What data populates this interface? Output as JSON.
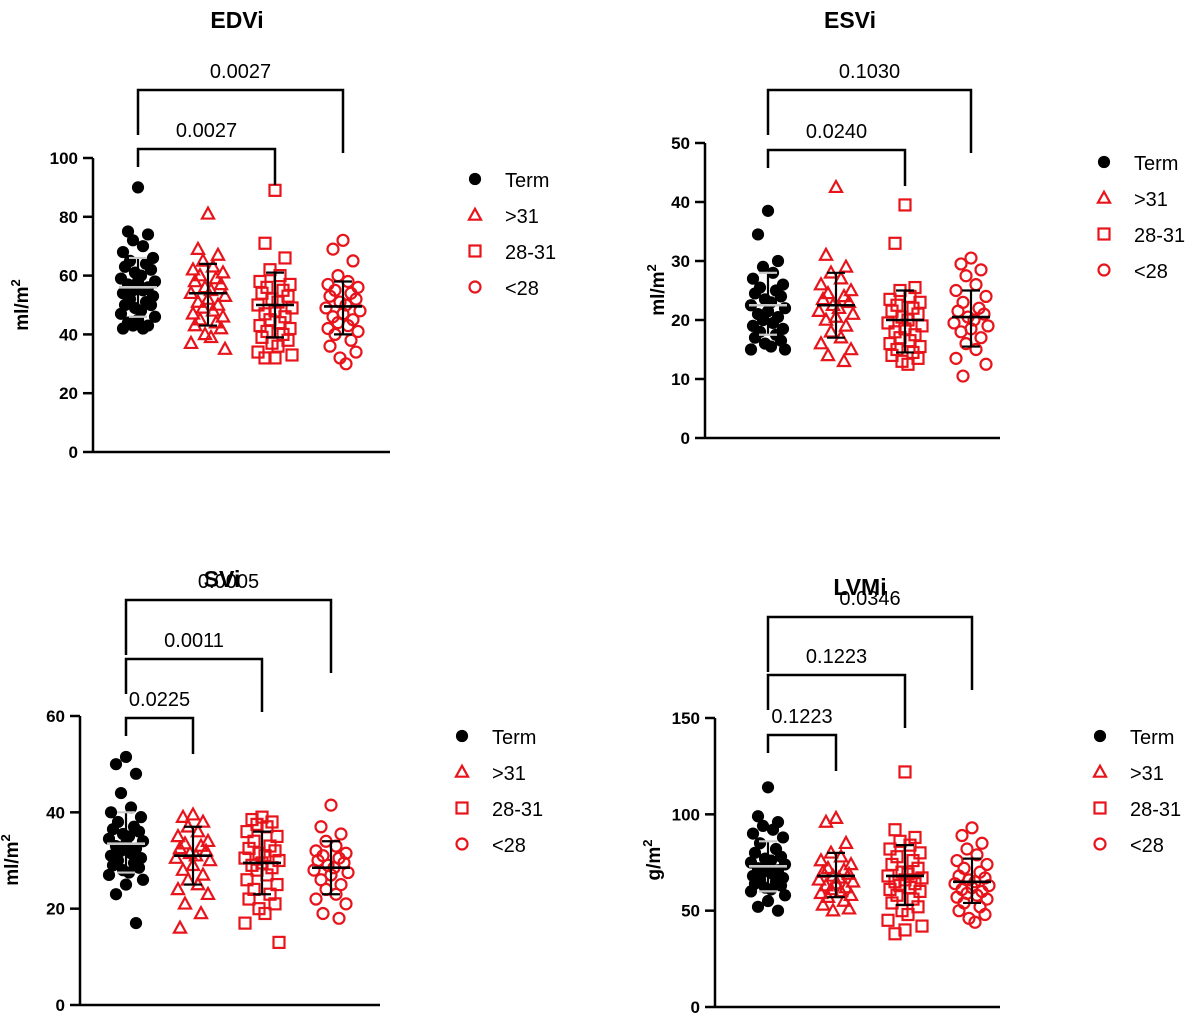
{
  "legend_entries": [
    {
      "label": "Term",
      "marker": "filled-circle",
      "color": "#000000"
    },
    {
      "label": ">31",
      "marker": "open-triangle",
      "color": "#e8141b"
    },
    {
      "label": "28-31",
      "marker": "open-square",
      "color": "#e8141b"
    },
    {
      "label": "<28",
      "marker": "open-circle",
      "color": "#e8141b"
    }
  ],
  "colors": {
    "term": "#000000",
    "preterm": "#e8141b",
    "mean_line_term": "#c8c8c8"
  },
  "chart_data": [
    {
      "type": "scatter",
      "title": "EDVi",
      "ylabel_main": "ml/m",
      "ylabel_sup": "2",
      "ylim": [
        0,
        100
      ],
      "yticks": [
        "0",
        "20",
        "40",
        "60",
        "80",
        "100"
      ],
      "ytick_values": [
        0,
        20,
        40,
        60,
        80,
        100
      ],
      "groups": [
        "Term",
        ">31",
        "28-31",
        "<28"
      ],
      "summary": [
        {
          "mean": 56,
          "sd_low": 46,
          "sd_high": 66
        },
        {
          "mean": 54,
          "sd_low": 43,
          "sd_high": 64
        },
        {
          "mean": 50,
          "sd_low": 39,
          "sd_high": 61
        },
        {
          "mean": 49.5,
          "sd_low": 40,
          "sd_high": 58
        }
      ],
      "points": [
        [
          90,
          75,
          74,
          72,
          70,
          68,
          66,
          65,
          64,
          63,
          62,
          61,
          60,
          59,
          58,
          58,
          57,
          56,
          55,
          55,
          54,
          53,
          52,
          51,
          50,
          50,
          49,
          48,
          47,
          46,
          45,
          44,
          43,
          43,
          42,
          42
        ],
        [
          81,
          69,
          67,
          65,
          63,
          62,
          61,
          60,
          59,
          58,
          57,
          56,
          55,
          54,
          53,
          52,
          51,
          50,
          49,
          48,
          47,
          46,
          45,
          44,
          43,
          42,
          40,
          39,
          37,
          35
        ],
        [
          89,
          71,
          66,
          62,
          60,
          58,
          57,
          56,
          55,
          54,
          53,
          52,
          51,
          50,
          49,
          48,
          47,
          46,
          45,
          44,
          43,
          42,
          41,
          40,
          39,
          38,
          37,
          36,
          34,
          33,
          32,
          32
        ],
        [
          72,
          69,
          65,
          60,
          58,
          57,
          56,
          55,
          54,
          53,
          52,
          51,
          50,
          49,
          48,
          47,
          46,
          45,
          44,
          43,
          42,
          41,
          40,
          38,
          36,
          34,
          32,
          30
        ]
      ],
      "comparisons": [
        {
          "from": 0,
          "to": 2,
          "p": "0.0027"
        },
        {
          "from": 0,
          "to": 3,
          "p": "0.0027"
        }
      ]
    },
    {
      "type": "scatter",
      "title": "ESVi",
      "ylabel_main": "ml/m",
      "ylabel_sup": "2",
      "ylim": [
        0,
        50
      ],
      "yticks": [
        "0",
        "10",
        "20",
        "30",
        "40",
        "50"
      ],
      "ytick_values": [
        0,
        10,
        20,
        30,
        40,
        50
      ],
      "groups": [
        "Term",
        ">31",
        "28-31",
        "<28"
      ],
      "summary": [
        {
          "mean": 22.5,
          "sd_low": 17.5,
          "sd_high": 28
        },
        {
          "mean": 22.5,
          "sd_low": 17,
          "sd_high": 28
        },
        {
          "mean": 20,
          "sd_low": 14.5,
          "sd_high": 25
        },
        {
          "mean": 20.5,
          "sd_low": 15.5,
          "sd_high": 25
        }
      ],
      "points": [
        [
          38.5,
          34.5,
          30,
          29,
          28,
          27,
          26,
          25.5,
          25,
          24.5,
          24,
          23.5,
          23,
          22.5,
          22,
          21.5,
          21,
          20.5,
          20,
          19.5,
          19,
          18.5,
          18,
          17.5,
          17,
          16.5,
          16,
          15.5,
          15,
          15
        ],
        [
          42.5,
          31,
          29,
          28,
          27,
          26,
          25,
          24.5,
          24,
          23.5,
          23,
          22.5,
          22,
          21.5,
          21,
          20.5,
          20,
          19,
          18,
          17,
          16,
          15,
          14,
          13
        ],
        [
          39.5,
          33,
          25.5,
          25,
          24,
          23.5,
          23,
          22.5,
          22,
          21.5,
          21,
          20.5,
          20,
          19.5,
          19,
          18.5,
          18,
          17.5,
          17,
          16.5,
          16,
          15.5,
          15,
          14.5,
          14,
          13.5,
          13,
          12.5
        ],
        [
          30.5,
          29.5,
          28.5,
          27.5,
          26,
          25,
          24,
          23,
          22,
          21.5,
          21,
          20.5,
          20,
          19.5,
          19,
          18.5,
          18,
          17,
          16,
          15,
          13.5,
          12.5,
          10.5
        ]
      ],
      "comparisons": [
        {
          "from": 0,
          "to": 2,
          "p": "0.0240"
        },
        {
          "from": 0,
          "to": 3,
          "p": "0.1030"
        }
      ]
    },
    {
      "type": "scatter",
      "title": "SVi",
      "ylabel_main": "ml/m",
      "ylabel_sup": "2",
      "ylim": [
        0,
        60
      ],
      "yticks": [
        "0",
        "20",
        "40",
        "60"
      ],
      "ytick_values": [
        0,
        20,
        40,
        60
      ],
      "groups": [
        "Term",
        ">31",
        "28-31",
        "<28"
      ],
      "summary": [
        {
          "mean": 33.5,
          "sd_low": 27.5,
          "sd_high": 40
        },
        {
          "mean": 31,
          "sd_low": 25,
          "sd_high": 37
        },
        {
          "mean": 29.5,
          "sd_low": 23,
          "sd_high": 36
        },
        {
          "mean": 28.5,
          "sd_low": 23,
          "sd_high": 34
        }
      ],
      "points": [
        [
          51.5,
          50,
          48,
          44,
          41,
          40,
          39,
          38,
          37,
          36.5,
          36,
          35.5,
          35,
          34.5,
          34,
          33.5,
          33,
          32.5,
          32,
          31.5,
          31,
          30.5,
          30,
          29.5,
          29,
          28.5,
          28,
          27.5,
          27,
          26,
          25,
          23,
          17
        ],
        [
          39.5,
          39,
          38,
          37,
          36,
          35,
          34,
          33.5,
          33,
          32.5,
          32,
          31.5,
          31,
          30.5,
          30,
          29,
          28,
          27,
          26,
          25,
          24,
          23,
          21,
          19,
          16
        ],
        [
          39,
          38.5,
          38,
          37.5,
          37,
          36,
          35,
          34,
          33,
          32.5,
          32,
          31.5,
          31,
          30.5,
          30,
          29.5,
          29,
          28.5,
          28,
          27,
          26,
          25,
          24,
          23,
          22,
          21,
          20,
          19,
          17,
          13
        ],
        [
          41.5,
          37,
          35.5,
          34,
          33,
          32,
          31.5,
          31,
          30.5,
          30,
          29.5,
          29,
          28.5,
          28,
          27.5,
          27,
          26,
          25,
          24,
          23,
          22,
          21,
          19,
          18
        ]
      ],
      "comparisons": [
        {
          "from": 0,
          "to": 1,
          "p": "0.0225"
        },
        {
          "from": 0,
          "to": 2,
          "p": "0.0011"
        },
        {
          "from": 0,
          "to": 3,
          "p": "0.0005"
        }
      ]
    },
    {
      "type": "scatter",
      "title": "LVMi",
      "ylabel_main": "g/m",
      "ylabel_sup": "2",
      "ylim": [
        0,
        150
      ],
      "yticks": [
        "0",
        "50",
        "100",
        "150"
      ],
      "ytick_values": [
        0,
        50,
        100,
        150
      ],
      "groups": [
        "Term",
        ">31",
        "28-31",
        "<28"
      ],
      "summary": [
        {
          "mean": 73,
          "sd_low": 60,
          "sd_high": 86
        },
        {
          "mean": 68,
          "sd_low": 57,
          "sd_high": 80
        },
        {
          "mean": 68,
          "sd_low": 53,
          "sd_high": 84
        },
        {
          "mean": 65,
          "sd_low": 54,
          "sd_high": 77
        }
      ],
      "points": [
        [
          114,
          99,
          96,
          94,
          92,
          90,
          88,
          85,
          82,
          80,
          78,
          77,
          76,
          75,
          74,
          73,
          72,
          71,
          70,
          69,
          68,
          67,
          66,
          65,
          64,
          63,
          62,
          61,
          60,
          58,
          55,
          52,
          50
        ],
        [
          98,
          96,
          85,
          80,
          78,
          76,
          74,
          72,
          71,
          70,
          69,
          68,
          67,
          66,
          65,
          64,
          63,
          62,
          61,
          60,
          59,
          58,
          57,
          55,
          53,
          51,
          50
        ],
        [
          122,
          92,
          88,
          86,
          84,
          82,
          80,
          78,
          76,
          74,
          72,
          70,
          69,
          68,
          67,
          66,
          65,
          64,
          63,
          62,
          61,
          60,
          58,
          56,
          54,
          52,
          50,
          48,
          45,
          42,
          40,
          38
        ],
        [
          93,
          89,
          85,
          82,
          79,
          76,
          74,
          72,
          70,
          68,
          67,
          66,
          65,
          64,
          63,
          62,
          61,
          60,
          59,
          58,
          57,
          56,
          54,
          52,
          50,
          48,
          46,
          44
        ]
      ],
      "comparisons": [
        {
          "from": 0,
          "to": 1,
          "p": "0.1223"
        },
        {
          "from": 0,
          "to": 2,
          "p": "0.1223"
        },
        {
          "from": 0,
          "to": 3,
          "p": "0.0346"
        }
      ]
    }
  ]
}
